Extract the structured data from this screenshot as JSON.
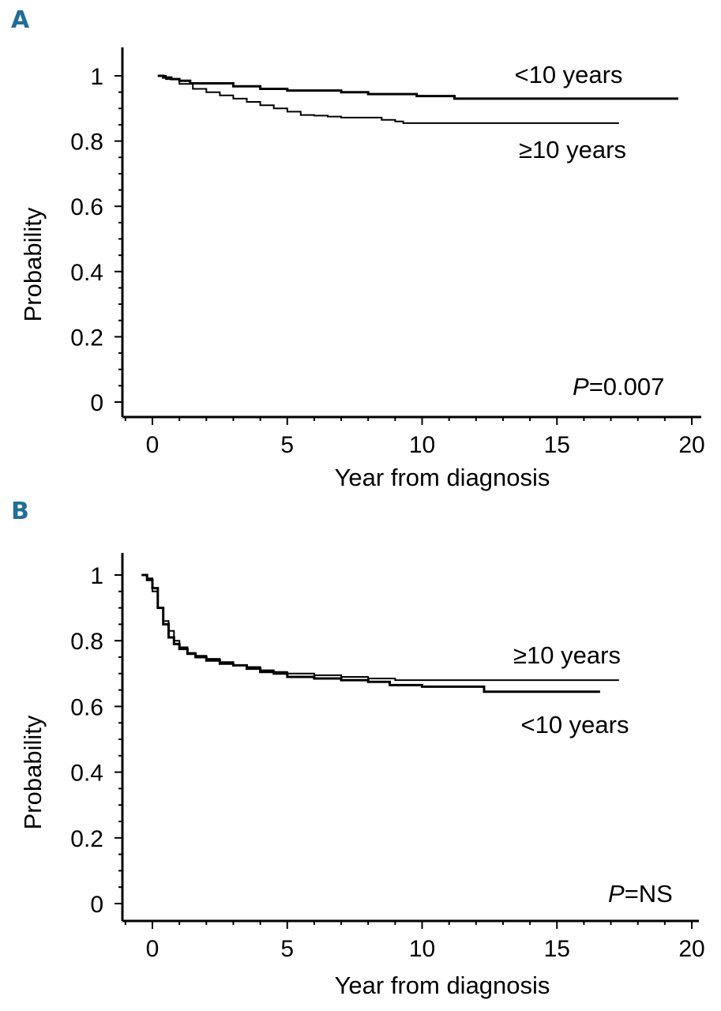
{
  "chart_data": [
    {
      "panel": "A",
      "type": "line",
      "xlabel": "Year from diagnosis",
      "ylabel": "Probability",
      "xlim": [
        -1.1,
        20.2
      ],
      "ylim": [
        -0.05,
        1.05
      ],
      "xticks": [
        0,
        5,
        10,
        15,
        20
      ],
      "yticks": [
        0,
        0.2,
        0.4,
        0.6,
        0.8,
        1
      ],
      "ytick_labels": [
        "0",
        "0.2",
        "0.4",
        "0.6",
        "0.8",
        "1"
      ],
      "pvalue_prefix": "P",
      "pvalue_rest": "=0.007",
      "series": [
        {
          "name": "<10 years",
          "stroke_width": 3,
          "x": [
            0.2,
            0.4,
            0.7,
            1.0,
            1.4,
            2.0,
            3.0,
            4.0,
            5.0,
            7.0,
            8.0,
            9.8,
            11.2,
            13.0,
            15.0,
            17.0,
            19.5
          ],
          "y": [
            1.0,
            0.995,
            0.99,
            0.985,
            0.977,
            0.977,
            0.968,
            0.96,
            0.955,
            0.95,
            0.944,
            0.938,
            0.93,
            0.93,
            0.93,
            0.93,
            0.93
          ]
        },
        {
          "name": "≥10 years",
          "stroke_width": 2,
          "x": [
            0.2,
            0.5,
            1.0,
            1.5,
            2.0,
            2.5,
            3.0,
            3.5,
            4.0,
            4.5,
            5.0,
            5.5,
            6.0,
            6.5,
            7.0,
            8.0,
            8.5,
            9.0,
            9.3,
            11.0,
            13.0,
            15.0,
            17.3
          ],
          "y": [
            1.0,
            0.99,
            0.975,
            0.96,
            0.95,
            0.94,
            0.93,
            0.92,
            0.91,
            0.9,
            0.89,
            0.88,
            0.878,
            0.875,
            0.872,
            0.872,
            0.865,
            0.86,
            0.855,
            0.855,
            0.855,
            0.855,
            0.855
          ]
        }
      ],
      "labels": [
        {
          "text": "<10 years",
          "series": "<10 years"
        },
        {
          "text": "≥10 years",
          "series": "≥10 years"
        }
      ]
    },
    {
      "panel": "B",
      "type": "line",
      "xlabel": "Year from diagnosis",
      "ylabel": "Probability",
      "xlim": [
        -1.1,
        20.2
      ],
      "ylim": [
        -0.05,
        1.05
      ],
      "xticks": [
        0,
        5,
        10,
        15,
        20
      ],
      "yticks": [
        0,
        0.2,
        0.4,
        0.6,
        0.8,
        1
      ],
      "ytick_labels": [
        "0",
        "0.2",
        "0.4",
        "0.6",
        "0.8",
        "1"
      ],
      "pvalue_prefix": "P",
      "pvalue_rest": "=NS",
      "series": [
        {
          "name": "≥10 years",
          "stroke_width": 2,
          "x": [
            -0.4,
            -0.2,
            0.0,
            0.2,
            0.4,
            0.6,
            0.8,
            1.0,
            1.3,
            1.6,
            2.0,
            2.5,
            3.0,
            3.5,
            4.0,
            4.5,
            5.0,
            6.0,
            7.0,
            8.0,
            9.0,
            10.0,
            12.0,
            15.0,
            17.3
          ],
          "y": [
            1.0,
            0.99,
            0.95,
            0.9,
            0.86,
            0.83,
            0.8,
            0.78,
            0.763,
            0.754,
            0.745,
            0.735,
            0.725,
            0.72,
            0.71,
            0.705,
            0.7,
            0.695,
            0.69,
            0.685,
            0.68,
            0.68,
            0.68,
            0.68,
            0.68
          ]
        },
        {
          "name": "<10 years",
          "stroke_width": 3,
          "x": [
            -0.4,
            -0.2,
            0.0,
            0.2,
            0.4,
            0.6,
            0.8,
            1.0,
            1.3,
            1.6,
            2.0,
            2.5,
            3.0,
            3.5,
            4.0,
            4.5,
            5.0,
            6.0,
            7.0,
            8.0,
            8.8,
            10.0,
            12.3,
            14.0,
            16.6
          ],
          "y": [
            1.0,
            0.985,
            0.96,
            0.9,
            0.85,
            0.81,
            0.79,
            0.775,
            0.76,
            0.75,
            0.74,
            0.73,
            0.725,
            0.715,
            0.705,
            0.7,
            0.69,
            0.685,
            0.68,
            0.675,
            0.665,
            0.66,
            0.645,
            0.645,
            0.645
          ]
        }
      ],
      "labels": [
        {
          "text": "≥10 years",
          "series": "≥10 years"
        },
        {
          "text": "<10 years",
          "series": "<10 years"
        }
      ]
    }
  ]
}
